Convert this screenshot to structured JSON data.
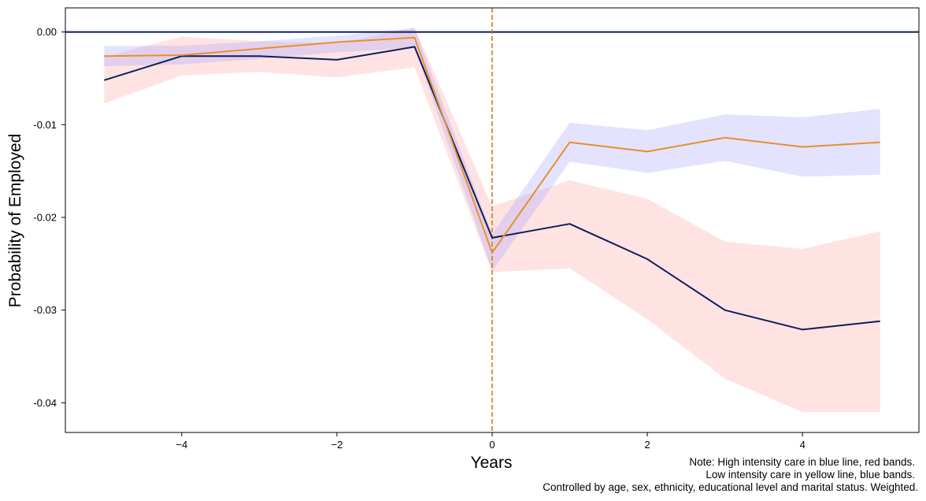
{
  "chart_data": {
    "type": "line",
    "title": "",
    "xlabel": "Years",
    "ylabel": "Probability of Employed",
    "xlim": [
      -5.5,
      5.5
    ],
    "ylim": [
      -0.0432,
      0.0026
    ],
    "x_ticks": [
      -4,
      -2,
      0,
      2,
      4
    ],
    "x_tick_labels": [
      "−4",
      "−2",
      "0",
      "2",
      "4"
    ],
    "y_ticks": [
      0.0,
      -0.01,
      -0.02,
      -0.03,
      -0.04
    ],
    "y_tick_labels": [
      "0.00",
      "-0.01",
      "-0.02",
      "-0.03",
      "-0.04"
    ],
    "grid": false,
    "reference_lines": [
      {
        "orientation": "horizontal",
        "value": 0,
        "color": "#0b1f5c",
        "style": "solid"
      },
      {
        "orientation": "vertical",
        "value": 0,
        "color": "#d97a14",
        "style": "dashed"
      }
    ],
    "series": [
      {
        "color": "#0b1f5c",
        "band_color": "#ff9c9c",
        "x": [
          -5,
          -4,
          -3,
          -2,
          -1,
          0,
          1,
          2,
          3,
          4,
          5
        ],
        "values": [
          -0.0052,
          -0.0026,
          -0.0026,
          -0.003,
          -0.0016,
          -0.0222,
          -0.0207,
          -0.0245,
          -0.03,
          -0.0321,
          -0.0312
        ],
        "lower": [
          -0.0077,
          -0.0047,
          -0.0043,
          -0.0049,
          -0.0038,
          -0.0259,
          -0.0255,
          -0.031,
          -0.0374,
          -0.041,
          -0.041
        ],
        "upper": [
          -0.0027,
          -0.0005,
          -0.001,
          -0.0012,
          0.0005,
          -0.0188,
          -0.016,
          -0.018,
          -0.0226,
          -0.0234,
          -0.0215
        ]
      },
      {
        "color": "#e8902a",
        "band_color": "#9c9cff",
        "x": [
          -5,
          -4,
          -3,
          -2,
          -1,
          0,
          1,
          2,
          3,
          4,
          5
        ],
        "values": [
          -0.0026,
          -0.0025,
          -0.0018,
          -0.0011,
          -0.0006,
          -0.0238,
          -0.0119,
          -0.0129,
          -0.0114,
          -0.0124,
          -0.0119
        ],
        "lower": [
          -0.0037,
          -0.0035,
          -0.0029,
          -0.0022,
          -0.0017,
          -0.0258,
          -0.014,
          -0.0152,
          -0.0139,
          -0.0156,
          -0.0154
        ],
        "upper": [
          -0.0015,
          -0.0015,
          -0.001,
          -0.0004,
          0.0004,
          -0.0218,
          -0.0098,
          -0.0106,
          -0.0089,
          -0.0092,
          -0.0083
        ]
      }
    ],
    "note": [
      "Note: High intensity care in blue line, red bands.",
      "Low intensity care in yellow line, blue bands.",
      "Controlled by age, sex, ethnicity, educational level and marital status. Weighted."
    ]
  }
}
